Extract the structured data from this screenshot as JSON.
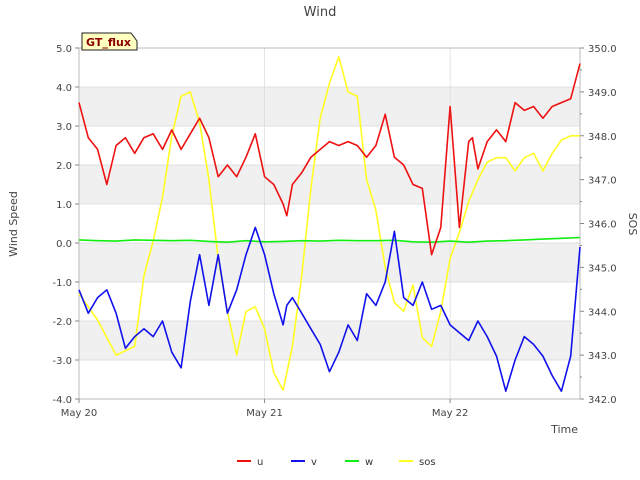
{
  "chart_data": {
    "type": "line",
    "title": "Wind",
    "xlabel": "Time",
    "ylabel_left": "Wind Speed",
    "ylabel_right": "SOS",
    "badge": "GT_flux",
    "x_range": [
      0,
      2.7
    ],
    "x_ticks": [
      {
        "value": 0,
        "label": "May 20"
      },
      {
        "value": 1,
        "label": "May 21"
      },
      {
        "value": 2,
        "label": "May 22"
      }
    ],
    "ylim_left": [
      -4.0,
      5.0
    ],
    "yticks_left": [
      -4.0,
      -3.0,
      -2.0,
      -1.0,
      0.0,
      1.0,
      2.0,
      3.0,
      4.0,
      5.0
    ],
    "ylim_right": [
      342.0,
      350.0
    ],
    "yticks_right": [
      342.0,
      343.0,
      344.0,
      345.0,
      346.0,
      347.0,
      348.0,
      349.0,
      350.0
    ],
    "colors": {
      "u": "#ee1111",
      "v": "#1111ee",
      "w": "#11ee11",
      "sos": "#ffff22",
      "band": "#f0f0f0",
      "grid": "#d8d8d8",
      "axis": "#bbbbbb"
    },
    "legend_position": "bottom-center",
    "series": [
      {
        "name": "u",
        "axis": "left",
        "x": [
          0,
          0.05,
          0.1,
          0.15,
          0.2,
          0.25,
          0.3,
          0.35,
          0.4,
          0.45,
          0.5,
          0.55,
          0.6,
          0.65,
          0.7,
          0.75,
          0.8,
          0.85,
          0.9,
          0.95,
          1.0,
          1.05,
          1.1,
          1.12,
          1.15,
          1.2,
          1.25,
          1.3,
          1.35,
          1.4,
          1.45,
          1.5,
          1.55,
          1.6,
          1.65,
          1.7,
          1.75,
          1.8,
          1.85,
          1.9,
          1.95,
          2.0,
          2.05,
          2.1,
          2.12,
          2.15,
          2.2,
          2.25,
          2.3,
          2.35,
          2.4,
          2.45,
          2.5,
          2.55,
          2.6,
          2.65,
          2.7
        ],
        "values": [
          3.6,
          2.7,
          2.4,
          1.5,
          2.5,
          2.7,
          2.3,
          2.7,
          2.8,
          2.4,
          2.9,
          2.4,
          2.8,
          3.2,
          2.7,
          1.7,
          2.0,
          1.7,
          2.2,
          2.8,
          1.7,
          1.5,
          1.0,
          0.7,
          1.5,
          1.8,
          2.2,
          2.4,
          2.6,
          2.5,
          2.6,
          2.5,
          2.2,
          2.5,
          3.3,
          2.2,
          2.0,
          1.5,
          1.4,
          -0.3,
          0.4,
          3.5,
          0.4,
          2.6,
          2.7,
          1.9,
          2.6,
          2.9,
          2.6,
          3.6,
          3.4,
          3.5,
          3.2,
          3.5,
          3.6,
          3.7,
          4.6
        ]
      },
      {
        "name": "v",
        "axis": "left",
        "x": [
          0,
          0.05,
          0.1,
          0.15,
          0.2,
          0.25,
          0.3,
          0.35,
          0.4,
          0.45,
          0.5,
          0.55,
          0.6,
          0.65,
          0.7,
          0.75,
          0.8,
          0.85,
          0.9,
          0.95,
          1.0,
          1.05,
          1.1,
          1.12,
          1.15,
          1.2,
          1.25,
          1.3,
          1.35,
          1.4,
          1.45,
          1.5,
          1.55,
          1.6,
          1.65,
          1.7,
          1.75,
          1.8,
          1.85,
          1.9,
          1.95,
          2.0,
          2.05,
          2.1,
          2.15,
          2.2,
          2.25,
          2.3,
          2.35,
          2.4,
          2.45,
          2.5,
          2.55,
          2.6,
          2.65,
          2.7
        ],
        "values": [
          -1.2,
          -1.8,
          -1.4,
          -1.2,
          -1.8,
          -2.7,
          -2.4,
          -2.2,
          -2.4,
          -2.0,
          -2.8,
          -3.2,
          -1.5,
          -0.3,
          -1.6,
          -0.3,
          -1.8,
          -1.2,
          -0.3,
          0.4,
          -0.3,
          -1.3,
          -2.1,
          -1.6,
          -1.4,
          -1.8,
          -2.2,
          -2.6,
          -3.3,
          -2.8,
          -2.1,
          -2.5,
          -1.3,
          -1.6,
          -1.0,
          0.3,
          -1.4,
          -1.6,
          -1.0,
          -1.7,
          -1.6,
          -2.1,
          -2.3,
          -2.5,
          -2.0,
          -2.4,
          -2.9,
          -3.8,
          -3.0,
          -2.4,
          -2.6,
          -2.9,
          -3.4,
          -3.8,
          -2.9,
          -0.1
        ]
      },
      {
        "name": "w",
        "axis": "left",
        "x": [
          0,
          0.1,
          0.2,
          0.3,
          0.4,
          0.5,
          0.6,
          0.7,
          0.8,
          0.9,
          1.0,
          1.1,
          1.2,
          1.3,
          1.4,
          1.5,
          1.6,
          1.7,
          1.8,
          1.9,
          2.0,
          2.1,
          2.2,
          2.3,
          2.4,
          2.5,
          2.6,
          2.7
        ],
        "values": [
          0.08,
          0.06,
          0.05,
          0.08,
          0.07,
          0.06,
          0.07,
          0.04,
          0.02,
          0.06,
          0.03,
          0.04,
          0.06,
          0.05,
          0.07,
          0.06,
          0.06,
          0.07,
          0.03,
          0.02,
          0.05,
          0.02,
          0.05,
          0.06,
          0.08,
          0.1,
          0.12,
          0.14
        ]
      },
      {
        "name": "sos",
        "axis": "right",
        "x": [
          0,
          0.1,
          0.2,
          0.3,
          0.35,
          0.4,
          0.45,
          0.5,
          0.55,
          0.6,
          0.65,
          0.7,
          0.75,
          0.8,
          0.85,
          0.9,
          0.95,
          1.0,
          1.05,
          1.1,
          1.15,
          1.2,
          1.25,
          1.3,
          1.35,
          1.4,
          1.45,
          1.5,
          1.55,
          1.6,
          1.65,
          1.7,
          1.75,
          1.8,
          1.85,
          1.9,
          1.95,
          2.0,
          2.05,
          2.1,
          2.15,
          2.2,
          2.25,
          2.3,
          2.35,
          2.4,
          2.45,
          2.5,
          2.55,
          2.6,
          2.65,
          2.7
        ],
        "values": [
          344.4,
          343.8,
          343.0,
          343.2,
          344.8,
          345.6,
          346.6,
          348.0,
          348.9,
          349.0,
          348.3,
          347.0,
          345.2,
          344.0,
          343.0,
          344.0,
          344.1,
          343.6,
          342.6,
          342.2,
          343.2,
          344.8,
          346.8,
          348.4,
          349.2,
          349.8,
          349.0,
          348.9,
          347.0,
          346.3,
          345.0,
          344.2,
          344.0,
          344.6,
          343.4,
          343.2,
          344.0,
          345.2,
          345.8,
          346.5,
          347.0,
          347.4,
          347.5,
          347.5,
          347.2,
          347.5,
          347.6,
          347.2,
          347.6,
          347.9,
          348.0,
          348.0
        ]
      }
    ]
  }
}
